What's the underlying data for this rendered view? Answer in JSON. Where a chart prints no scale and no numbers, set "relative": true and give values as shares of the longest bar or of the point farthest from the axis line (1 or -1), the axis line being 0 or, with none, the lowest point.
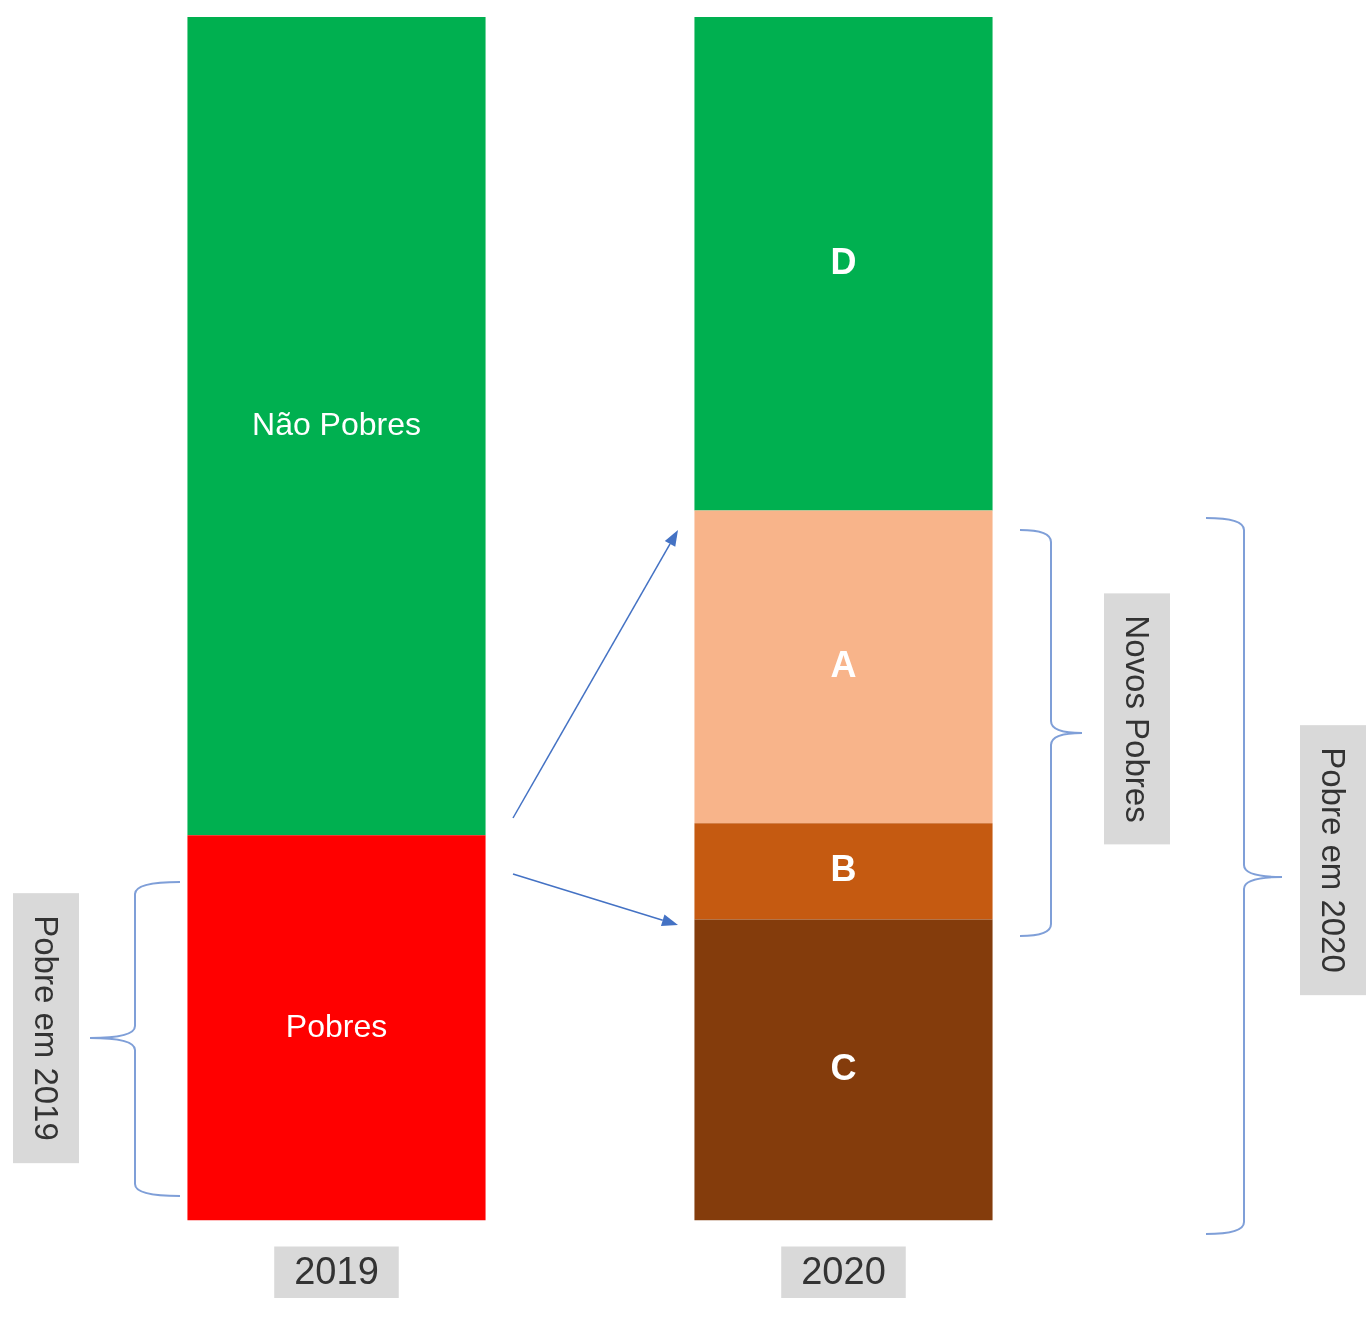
{
  "chart_data": {
    "type": "bar",
    "relative": true,
    "stacked": true,
    "legend": false,
    "grid": false,
    "categories": [
      "2019",
      "2020"
    ],
    "series": [
      {
        "name": "Pobres",
        "color": "#ff0000",
        "values": [
          0.32,
          null
        ]
      },
      {
        "name": "Não Pobres",
        "color": "#00b050",
        "values": [
          0.68,
          null
        ]
      },
      {
        "name": "C",
        "color": "#843c0c",
        "values": [
          null,
          0.25
        ]
      },
      {
        "name": "B",
        "color": "#c55a11",
        "values": [
          null,
          0.08
        ]
      },
      {
        "name": "A",
        "color": "#f8b48a",
        "values": [
          null,
          0.26
        ]
      },
      {
        "name": "D",
        "color": "#00b050",
        "values": [
          null,
          0.41
        ]
      }
    ],
    "annotations": [
      "Pobre em 2019",
      "Novos Pobres",
      "Pobre em 2020"
    ]
  }
}
